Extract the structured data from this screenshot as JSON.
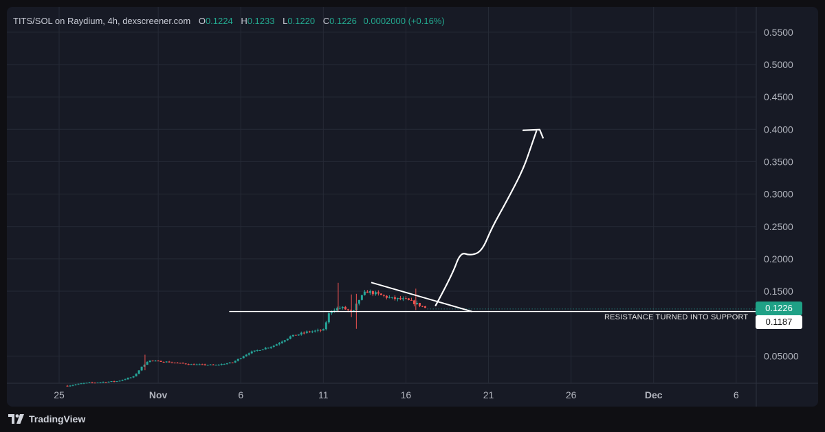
{
  "legend": {
    "pair": "TITS/SOL on Raydium, 4h, dexscreener.com",
    "open_label": "O",
    "open": "0.1224",
    "high_label": "H",
    "high": "0.1233",
    "low_label": "L",
    "low": "0.1220",
    "close_label": "C",
    "close": "0.1226",
    "change": "0.0002000 (+0.16%)"
  },
  "price_tags": {
    "last": "0.1226",
    "support": "0.1187"
  },
  "annotation": {
    "support_label": "RESISTANCE TURNED INTO SUPPORT"
  },
  "footer": {
    "brand": "TradingView"
  },
  "colors": {
    "up": "#26a69a",
    "down": "#ef5350",
    "background": "#171a25",
    "grid": "#262a36",
    "drawing": "#ffffff"
  },
  "chart_data": {
    "type": "candlestick",
    "x_axis": {
      "ticks": [
        {
          "label": "25",
          "day": 25
        },
        {
          "label": "Nov",
          "day": 31,
          "bold": true
        },
        {
          "label": "6",
          "day": 36
        },
        {
          "label": "11",
          "day": 41
        },
        {
          "label": "16",
          "day": 46
        },
        {
          "label": "21",
          "day": 51
        },
        {
          "label": "26",
          "day": 56
        },
        {
          "label": "Dec",
          "day": 61,
          "bold": true
        },
        {
          "label": "6",
          "day": 66
        }
      ]
    },
    "y_axis": {
      "ticks": [
        {
          "label": "0.05000",
          "value": 0.05
        },
        {
          "label": "0.1500",
          "value": 0.15
        },
        {
          "label": "0.2000",
          "value": 0.2
        },
        {
          "label": "0.2500",
          "value": 0.25
        },
        {
          "label": "0.3000",
          "value": 0.3
        },
        {
          "label": "0.3500",
          "value": 0.35
        },
        {
          "label": "0.4000",
          "value": 0.4
        },
        {
          "label": "0.4500",
          "value": 0.45
        },
        {
          "label": "0.5000",
          "value": 0.5
        },
        {
          "label": "0.5500",
          "value": 0.55
        }
      ]
    },
    "price_path": [
      [
        25.5,
        0.004
      ],
      [
        26.5,
        0.008
      ],
      [
        28.5,
        0.011
      ],
      [
        29.5,
        0.018
      ],
      [
        30.0,
        0.033
      ],
      [
        30.4,
        0.043
      ],
      [
        31.5,
        0.041
      ],
      [
        33.0,
        0.037
      ],
      [
        34.5,
        0.036
      ],
      [
        35.5,
        0.04
      ],
      [
        36.5,
        0.055
      ],
      [
        38.0,
        0.066
      ],
      [
        39.0,
        0.08
      ],
      [
        40.0,
        0.087
      ],
      [
        41.0,
        0.09
      ],
      [
        41.4,
        0.12
      ],
      [
        42.1,
        0.125
      ],
      [
        42.8,
        0.117
      ],
      [
        43.1,
        0.135
      ],
      [
        43.6,
        0.15
      ],
      [
        44.2,
        0.146
      ],
      [
        45.1,
        0.139
      ],
      [
        46.0,
        0.137
      ],
      [
        46.8,
        0.129
      ],
      [
        47.3,
        0.1226
      ]
    ],
    "last_price": 0.1226,
    "support_level": 0.1187,
    "grid": true,
    "drawings": [
      {
        "type": "horizontal_line",
        "value": 0.1187,
        "from_day": 35.3,
        "to_day": 54.3
      },
      {
        "type": "trendline",
        "points": [
          [
            43.9,
            0.1635
          ],
          [
            50.0,
            0.1187
          ]
        ]
      },
      {
        "type": "freehand_arrow",
        "points": [
          [
            47.8,
            0.128
          ],
          [
            48.8,
            0.175
          ],
          [
            49.3,
            0.2105
          ],
          [
            49.9,
            0.205
          ],
          [
            50.6,
            0.2115
          ],
          [
            51.2,
            0.248
          ],
          [
            52.1,
            0.289
          ],
          [
            53.1,
            0.338
          ],
          [
            53.6,
            0.375
          ],
          [
            53.9,
            0.397
          ]
        ],
        "head": [
          [
            53.1,
            0.3985
          ],
          [
            54.1,
            0.3995
          ],
          [
            54.3,
            0.387
          ]
        ]
      }
    ]
  }
}
